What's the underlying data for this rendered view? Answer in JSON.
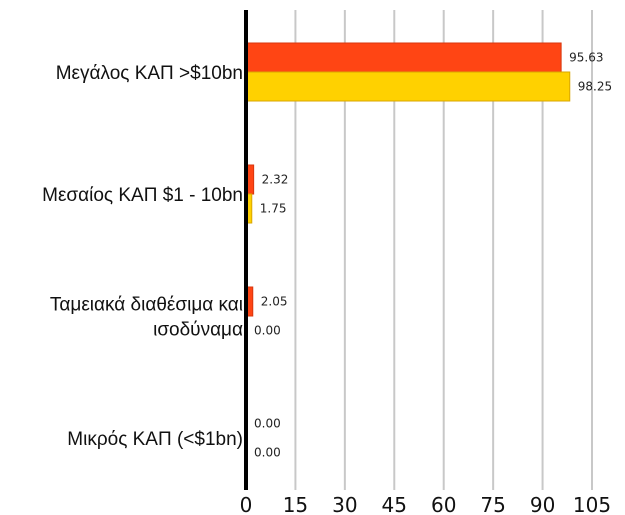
{
  "chart_data": {
    "type": "bar",
    "orientation": "horizontal",
    "categories": [
      [
        "Μεγάλος ΚΑΠ >$10bn"
      ],
      [
        "Μεσαίος ΚΑΠ $1 - 10bn"
      ],
      [
        "Ταμειακά διαθέσιμα και",
        "ισοδύναμα"
      ],
      [
        "Μικρός ΚΑΠ (<$1bn)"
      ]
    ],
    "series": [
      {
        "color": "#ff4514",
        "stroke": "#d8360e",
        "values": [
          95.63,
          2.32,
          2.05,
          0.0
        ]
      },
      {
        "color": "#ffd100",
        "stroke": "#d9a600",
        "values": [
          98.25,
          1.75,
          0.0,
          0.0
        ]
      }
    ],
    "value_labels": [
      [
        "95.63",
        "98.25"
      ],
      [
        "2.32",
        "1.75"
      ],
      [
        "2.05",
        "0.00"
      ],
      [
        "0.00",
        "0.00"
      ]
    ],
    "xlim": [
      0,
      105
    ],
    "xticks": [
      0,
      15,
      30,
      45,
      60,
      75,
      90,
      105
    ],
    "xtick_labels": [
      "0",
      "15",
      "30",
      "45",
      "60",
      "75",
      "90",
      "105"
    ],
    "grid": true,
    "legend": "none"
  }
}
